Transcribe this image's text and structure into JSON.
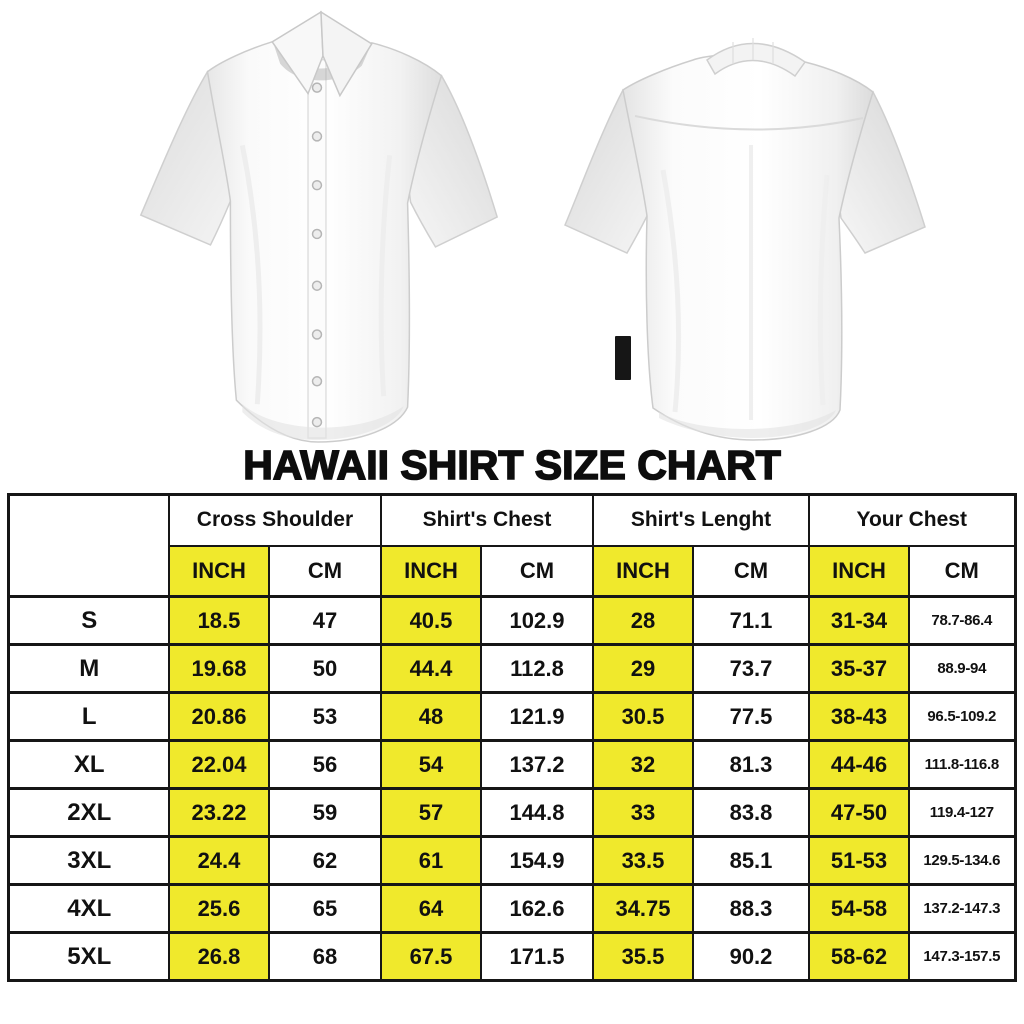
{
  "page": {
    "title": "HAWAII SHIRT SIZE CHART"
  },
  "images": {
    "front_shirt": "white short-sleeve button-up shirt, front view",
    "back_shirt": "white short-sleeve button-up shirt, back view with black hem tag"
  },
  "table": {
    "column_groups": [
      {
        "label": "Cross Shoulder"
      },
      {
        "label": "Shirt's Chest"
      },
      {
        "label": "Shirt's Lenght"
      },
      {
        "label": "Your Chest"
      }
    ],
    "unit_headers": [
      "INCH",
      "CM",
      "INCH",
      "CM",
      "INCH",
      "CM",
      "INCH",
      "CM"
    ],
    "rows": [
      {
        "size": "S",
        "values": [
          "18.5",
          "47",
          "40.5",
          "102.9",
          "28",
          "71.1",
          "31-34",
          "78.7-86.4"
        ]
      },
      {
        "size": "M",
        "values": [
          "19.68",
          "50",
          "44.4",
          "112.8",
          "29",
          "73.7",
          "35-37",
          "88.9-94"
        ]
      },
      {
        "size": "L",
        "values": [
          "20.86",
          "53",
          "48",
          "121.9",
          "30.5",
          "77.5",
          "38-43",
          "96.5-109.2"
        ]
      },
      {
        "size": "XL",
        "values": [
          "22.04",
          "56",
          "54",
          "137.2",
          "32",
          "81.3",
          "44-46",
          "111.8-116.8"
        ]
      },
      {
        "size": "2XL",
        "values": [
          "23.22",
          "59",
          "57",
          "144.8",
          "33",
          "83.8",
          "47-50",
          "119.4-127"
        ]
      },
      {
        "size": "3XL",
        "values": [
          "24.4",
          "62",
          "61",
          "154.9",
          "33.5",
          "85.1",
          "51-53",
          "129.5-134.6"
        ]
      },
      {
        "size": "4XL",
        "values": [
          "25.6",
          "65",
          "64",
          "162.6",
          "34.75",
          "88.3",
          "54-58",
          "137.2-147.3"
        ]
      },
      {
        "size": "5XL",
        "values": [
          "26.8",
          "68",
          "67.5",
          "171.5",
          "35.5",
          "90.2",
          "58-62",
          "147.3-157.5"
        ]
      }
    ],
    "colors": {
      "inch_highlight": "#f0e92c",
      "border": "#161616",
      "text": "#111111"
    }
  }
}
